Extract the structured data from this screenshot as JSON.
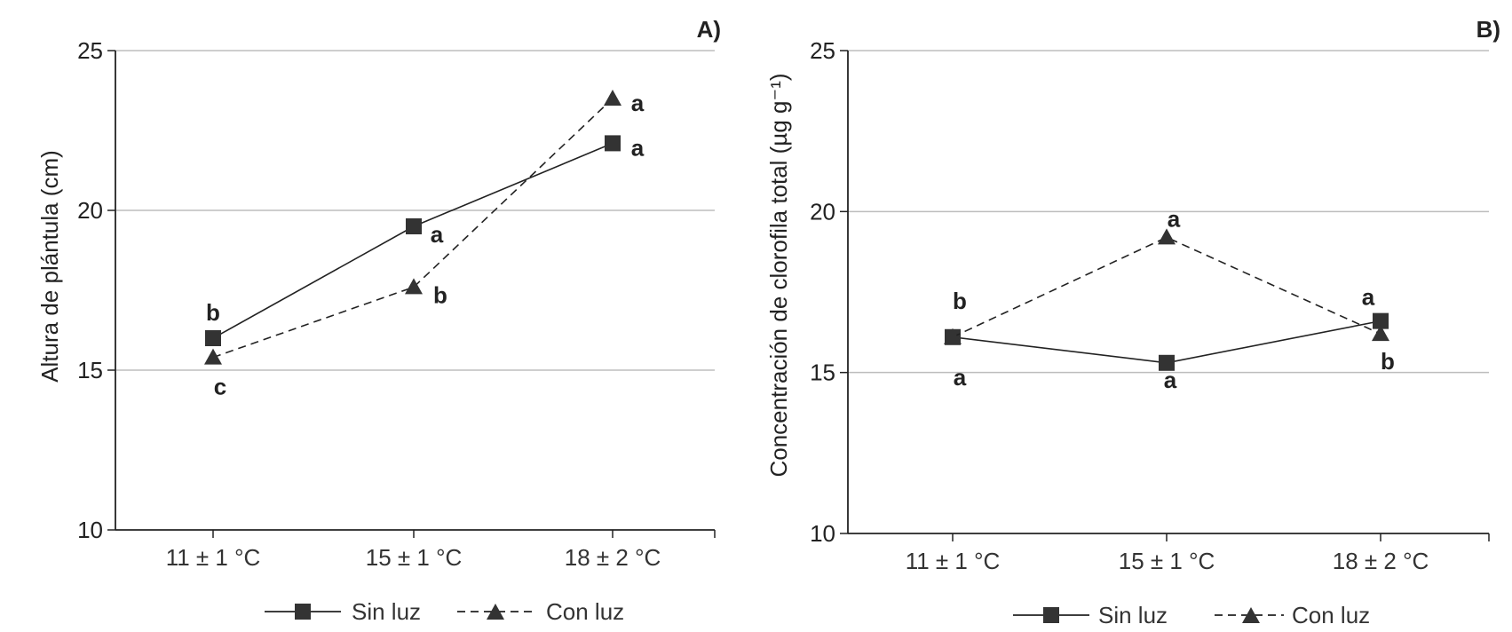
{
  "chart_data": [
    {
      "type": "line",
      "panel_label": "A)",
      "ylabel": "Altura de plántula (cm)",
      "xlabel": "",
      "categories": [
        "11 ± 1 °C",
        "15 ± 1 °C",
        "18 ± 2 °C"
      ],
      "ylim": [
        10,
        25
      ],
      "yticks": [
        10,
        15,
        20,
        25
      ],
      "grid": true,
      "series": [
        {
          "name": "Sin luz",
          "marker": "square",
          "line": "solid",
          "values": [
            16.0,
            19.5,
            22.1
          ],
          "labels": [
            "b",
            "a",
            "a"
          ]
        },
        {
          "name": "Con luz",
          "marker": "triangle",
          "line": "dashed",
          "values": [
            15.4,
            17.6,
            23.5
          ],
          "labels": [
            "c",
            "b",
            "a"
          ]
        }
      ]
    },
    {
      "type": "line",
      "panel_label": "B)",
      "ylabel": "Concentración de clorofila  total (µg g⁻¹)",
      "xlabel": "",
      "categories": [
        "11 ± 1 °C",
        "15 ± 1 °C",
        "18 ± 2 °C"
      ],
      "ylim": [
        10,
        25
      ],
      "yticks": [
        10,
        15,
        20,
        25
      ],
      "grid": true,
      "series": [
        {
          "name": "Sin luz",
          "marker": "square",
          "line": "solid",
          "values": [
            16.1,
            15.3,
            16.6
          ],
          "labels": [
            "a",
            "a",
            "a"
          ]
        },
        {
          "name": "Con luz",
          "marker": "triangle",
          "line": "dashed",
          "values": [
            16.1,
            19.2,
            16.2
          ],
          "labels": [
            "b",
            "a",
            "b"
          ]
        }
      ]
    }
  ],
  "legend": {
    "sin_luz": "Sin luz",
    "con_luz": "Con luz"
  },
  "colors": {
    "marker": "#333333",
    "grid": "#bdbdbd",
    "axis": "#222222"
  }
}
